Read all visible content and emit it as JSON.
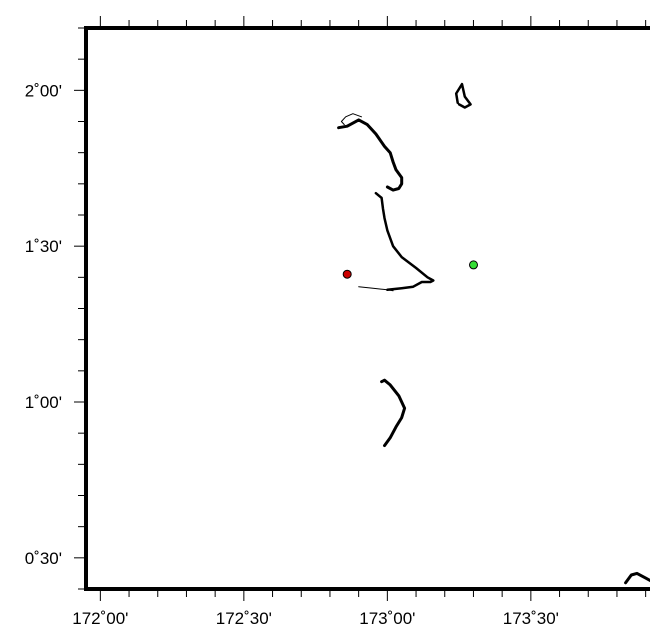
{
  "map": {
    "background": "#ffffff",
    "frame_color": "#000000",
    "extent": {
      "lon_min": 171.95,
      "lon_max": 173.95,
      "lat_min": 0.4,
      "lat_max": 2.2
    },
    "lat_labels": [
      {
        "value": 2.0,
        "text": "2˚00'"
      },
      {
        "value": 1.5,
        "text": "1˚30'"
      },
      {
        "value": 1.0,
        "text": "1˚00'"
      },
      {
        "value": 0.5,
        "text": "0˚30'"
      }
    ],
    "lon_labels": [
      {
        "value": 172.0,
        "text": "172˚00'"
      },
      {
        "value": 172.5,
        "text": "172˚30'"
      },
      {
        "value": 173.0,
        "text": "173˚00'"
      },
      {
        "value": 173.5,
        "text": "173˚30'"
      }
    ],
    "minor_tick_step_deg": 0.1,
    "markers": [
      {
        "name": "red-station-marker",
        "lon": 172.86,
        "lat": 1.41,
        "color": "#cc0000"
      },
      {
        "name": "green-station-marker",
        "lon": 173.3,
        "lat": 1.44,
        "color": "#33dd33"
      }
    ],
    "islands": [
      {
        "name": "atoll-north",
        "points": [
          [
            172.83,
            1.88
          ],
          [
            172.86,
            1.885
          ],
          [
            172.9,
            1.905
          ],
          [
            172.93,
            1.89
          ],
          [
            172.96,
            1.86
          ],
          [
            172.99,
            1.82
          ],
          [
            173.01,
            1.8
          ],
          [
            173.02,
            1.77
          ],
          [
            173.03,
            1.745
          ],
          [
            173.05,
            1.72
          ],
          [
            173.05,
            1.7
          ],
          [
            173.04,
            1.685
          ],
          [
            173.02,
            1.68
          ],
          [
            173.0,
            1.69
          ]
        ],
        "stroke": 3
      },
      {
        "name": "atoll-north-tip",
        "points": [
          [
            172.85,
            1.89
          ],
          [
            172.84,
            1.9
          ],
          [
            172.855,
            1.915
          ],
          [
            172.88,
            1.925
          ],
          [
            172.91,
            1.915
          ]
        ],
        "stroke": 1
      },
      {
        "name": "atoll-northeast",
        "points": [
          [
            173.245,
            1.96
          ],
          [
            173.24,
            1.99
          ],
          [
            173.26,
            2.02
          ],
          [
            173.27,
            1.98
          ],
          [
            173.29,
            1.955
          ],
          [
            173.27,
            1.945
          ],
          [
            173.25,
            1.955
          ]
        ],
        "stroke": 2.5
      },
      {
        "name": "atoll-central",
        "points": [
          [
            172.96,
            1.67
          ],
          [
            172.98,
            1.655
          ],
          [
            172.985,
            1.62
          ],
          [
            172.99,
            1.59
          ],
          [
            173.0,
            1.55
          ],
          [
            173.02,
            1.5
          ],
          [
            173.05,
            1.465
          ],
          [
            173.1,
            1.43
          ],
          [
            173.14,
            1.4
          ],
          [
            173.16,
            1.39
          ],
          [
            173.15,
            1.385
          ],
          [
            173.12,
            1.385
          ],
          [
            173.09,
            1.37
          ],
          [
            173.05,
            1.365
          ],
          [
            173.0,
            1.36
          ]
        ],
        "stroke": 2.5
      },
      {
        "name": "atoll-central-south",
        "points": [
          [
            172.9,
            1.37
          ],
          [
            172.95,
            1.365
          ],
          [
            173.0,
            1.36
          ],
          [
            173.02,
            1.357
          ]
        ],
        "stroke": 1
      },
      {
        "name": "atoll-south",
        "points": [
          [
            172.98,
            1.065
          ],
          [
            172.99,
            1.07
          ],
          [
            173.01,
            1.055
          ],
          [
            173.04,
            1.02
          ],
          [
            173.06,
            0.98
          ],
          [
            173.05,
            0.95
          ],
          [
            173.03,
            0.92
          ],
          [
            173.01,
            0.885
          ],
          [
            172.99,
            0.86
          ]
        ],
        "stroke": 3
      },
      {
        "name": "atoll-southeast-corner",
        "points": [
          [
            173.83,
            0.42
          ],
          [
            173.85,
            0.445
          ],
          [
            173.87,
            0.45
          ],
          [
            173.9,
            0.435
          ],
          [
            173.93,
            0.42
          ]
        ],
        "stroke": 3
      }
    ]
  }
}
